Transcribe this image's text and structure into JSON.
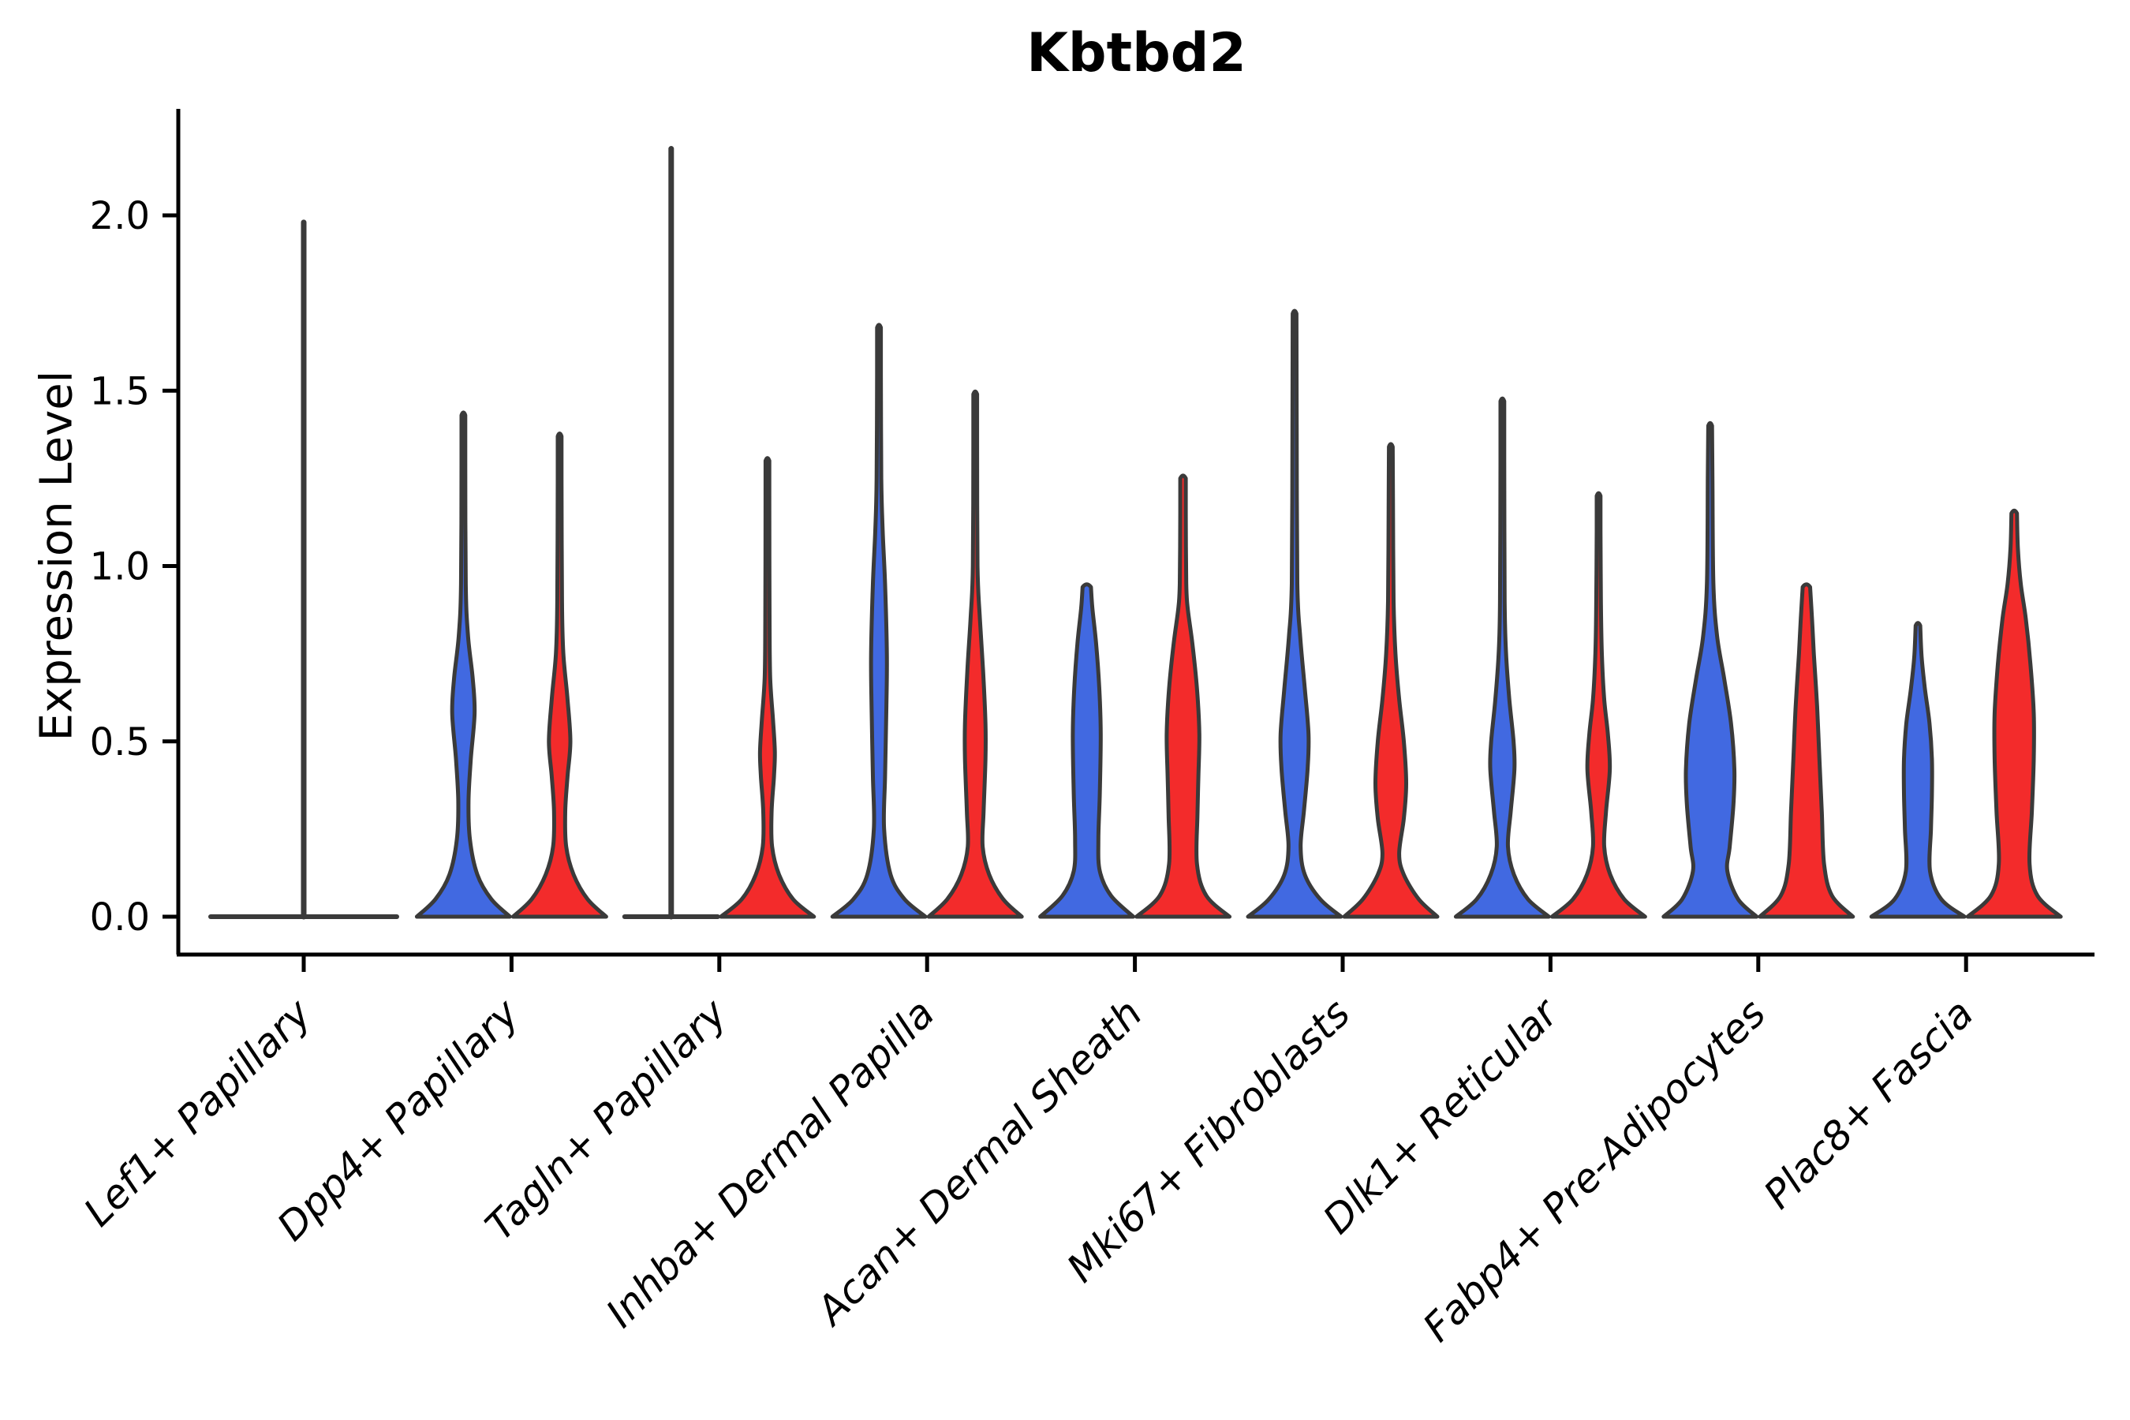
{
  "chart_data": {
    "type": "violin",
    "title": "Kbtbd2",
    "ylabel": "Expression Level",
    "xlabel": "",
    "ylim": [
      0,
      2.3
    ],
    "yticks": [
      "0.0",
      "0.5",
      "1.0",
      "1.5",
      "2.0"
    ],
    "ytick_values": [
      0.0,
      0.5,
      1.0,
      1.5,
      2.0
    ],
    "grid": false,
    "legend": "none",
    "colors": {
      "group1_fill": "#4169E1",
      "group2_fill": "#F32B2B",
      "outline": "#3A3A3A",
      "axis": "#000000"
    },
    "categories": [
      "Lef1+ Papillary",
      "Dpp4+ Papillary",
      "Tagln+ Papillary",
      "Inhba+ Dermal Papilla",
      "Acan+ Dermal Sheath",
      "Mki67+ Fibroblasts",
      "Dlk1+ Reticular",
      "Fabp4+ Pre-Adipocytes",
      "Plac8+ Fascia"
    ],
    "violins": [
      {
        "category": "Lef1+ Papillary",
        "shapes": [
          {
            "side": "center",
            "group": "none",
            "shape": "line",
            "max": 1.98,
            "flat_halfwidth": 2.0
          }
        ]
      },
      {
        "category": "Dpp4+ Papillary",
        "shapes": [
          {
            "side": "left",
            "group": "group1",
            "shape": "violin",
            "max": 1.43,
            "profile": [
              [
                0,
                1
              ],
              [
                0.05,
                0.6
              ],
              [
                0.12,
                0.3
              ],
              [
                0.22,
                0.14
              ],
              [
                0.33,
                0.11
              ],
              [
                0.45,
                0.16
              ],
              [
                0.58,
                0.24
              ],
              [
                0.68,
                0.2
              ],
              [
                0.8,
                0.1
              ],
              [
                0.95,
                0.05
              ],
              [
                1.3,
                0.04
              ],
              [
                1.43,
                0.04
              ]
            ]
          },
          {
            "side": "right",
            "group": "group2",
            "shape": "violin",
            "max": 1.37,
            "profile": [
              [
                0,
                1
              ],
              [
                0.05,
                0.6
              ],
              [
                0.12,
                0.3
              ],
              [
                0.2,
                0.14
              ],
              [
                0.3,
                0.12
              ],
              [
                0.4,
                0.17
              ],
              [
                0.5,
                0.23
              ],
              [
                0.62,
                0.17
              ],
              [
                0.75,
                0.08
              ],
              [
                0.9,
                0.05
              ],
              [
                1.25,
                0.04
              ],
              [
                1.37,
                0.04
              ]
            ]
          }
        ]
      },
      {
        "category": "Tagln+ Papillary",
        "shapes": [
          {
            "side": "left",
            "group": "group1",
            "shape": "line",
            "max": 2.19,
            "flat_halfwidth": 1.0
          },
          {
            "side": "right",
            "group": "group2",
            "shape": "violin",
            "max": 1.3,
            "profile": [
              [
                0,
                1
              ],
              [
                0.05,
                0.55
              ],
              [
                0.12,
                0.25
              ],
              [
                0.2,
                0.1
              ],
              [
                0.3,
                0.09
              ],
              [
                0.4,
                0.14
              ],
              [
                0.47,
                0.16
              ],
              [
                0.56,
                0.12
              ],
              [
                0.68,
                0.06
              ],
              [
                0.85,
                0.045
              ],
              [
                1.2,
                0.04
              ],
              [
                1.3,
                0.04
              ]
            ]
          }
        ]
      },
      {
        "category": "Inhba+ Dermal Papilla",
        "shapes": [
          {
            "side": "left",
            "group": "group1",
            "shape": "violin",
            "max": 1.68,
            "profile": [
              [
                0,
                1
              ],
              [
                0.05,
                0.55
              ],
              [
                0.12,
                0.25
              ],
              [
                0.25,
                0.11
              ],
              [
                0.4,
                0.13
              ],
              [
                0.6,
                0.16
              ],
              [
                0.75,
                0.17
              ],
              [
                0.95,
                0.13
              ],
              [
                1.1,
                0.08
              ],
              [
                1.25,
                0.05
              ],
              [
                1.55,
                0.04
              ],
              [
                1.68,
                0.04
              ]
            ]
          },
          {
            "side": "right",
            "group": "group2",
            "shape": "violin",
            "max": 1.49,
            "profile": [
              [
                0,
                1
              ],
              [
                0.05,
                0.6
              ],
              [
                0.12,
                0.3
              ],
              [
                0.2,
                0.16
              ],
              [
                0.3,
                0.18
              ],
              [
                0.45,
                0.22
              ],
              [
                0.55,
                0.22
              ],
              [
                0.7,
                0.17
              ],
              [
                0.85,
                0.1
              ],
              [
                1.0,
                0.05
              ],
              [
                1.35,
                0.04
              ],
              [
                1.49,
                0.04
              ]
            ]
          }
        ]
      },
      {
        "category": "Acan+ Dermal Sheath",
        "shapes": [
          {
            "side": "left",
            "group": "group1",
            "shape": "violin",
            "max": 0.94,
            "profile": [
              [
                0,
                1
              ],
              [
                0.06,
                0.52
              ],
              [
                0.13,
                0.28
              ],
              [
                0.22,
                0.25
              ],
              [
                0.35,
                0.28
              ],
              [
                0.52,
                0.3
              ],
              [
                0.65,
                0.27
              ],
              [
                0.78,
                0.2
              ],
              [
                0.88,
                0.12
              ],
              [
                0.94,
                0.09
              ]
            ]
          },
          {
            "side": "right",
            "group": "group2",
            "shape": "violin",
            "max": 1.25,
            "profile": [
              [
                0,
                1
              ],
              [
                0.06,
                0.5
              ],
              [
                0.15,
                0.3
              ],
              [
                0.29,
                0.31
              ],
              [
                0.4,
                0.33
              ],
              [
                0.52,
                0.35
              ],
              [
                0.65,
                0.3
              ],
              [
                0.78,
                0.2
              ],
              [
                0.88,
                0.1
              ],
              [
                0.95,
                0.07
              ],
              [
                1.15,
                0.06
              ],
              [
                1.25,
                0.06
              ]
            ]
          }
        ]
      },
      {
        "category": "Mki67+ Fibroblasts",
        "shapes": [
          {
            "side": "left",
            "group": "group1",
            "shape": "violin",
            "max": 1.72,
            "profile": [
              [
                0,
                1
              ],
              [
                0.05,
                0.55
              ],
              [
                0.12,
                0.22
              ],
              [
                0.2,
                0.13
              ],
              [
                0.3,
                0.2
              ],
              [
                0.42,
                0.28
              ],
              [
                0.52,
                0.3
              ],
              [
                0.65,
                0.22
              ],
              [
                0.8,
                0.12
              ],
              [
                0.95,
                0.06
              ],
              [
                1.4,
                0.045
              ],
              [
                1.72,
                0.04
              ]
            ]
          },
          {
            "side": "right",
            "group": "group2",
            "shape": "violin",
            "max": 1.34,
            "profile": [
              [
                0,
                1
              ],
              [
                0.05,
                0.6
              ],
              [
                0.12,
                0.28
              ],
              [
                0.18,
                0.18
              ],
              [
                0.28,
                0.28
              ],
              [
                0.38,
                0.33
              ],
              [
                0.5,
                0.28
              ],
              [
                0.62,
                0.18
              ],
              [
                0.75,
                0.1
              ],
              [
                0.9,
                0.06
              ],
              [
                1.2,
                0.045
              ],
              [
                1.34,
                0.04
              ]
            ]
          }
        ]
      },
      {
        "category": "Dlk1+ Reticular",
        "shapes": [
          {
            "side": "left",
            "group": "group1",
            "shape": "violin",
            "max": 1.47,
            "profile": [
              [
                0,
                1
              ],
              [
                0.05,
                0.55
              ],
              [
                0.12,
                0.25
              ],
              [
                0.2,
                0.12
              ],
              [
                0.3,
                0.18
              ],
              [
                0.42,
                0.26
              ],
              [
                0.5,
                0.24
              ],
              [
                0.62,
                0.15
              ],
              [
                0.75,
                0.08
              ],
              [
                0.9,
                0.05
              ],
              [
                1.3,
                0.04
              ],
              [
                1.47,
                0.04
              ]
            ]
          },
          {
            "side": "right",
            "group": "group2",
            "shape": "violin",
            "max": 1.2,
            "profile": [
              [
                0,
                1
              ],
              [
                0.05,
                0.55
              ],
              [
                0.12,
                0.25
              ],
              [
                0.2,
                0.12
              ],
              [
                0.3,
                0.16
              ],
              [
                0.42,
                0.24
              ],
              [
                0.52,
                0.2
              ],
              [
                0.62,
                0.12
              ],
              [
                0.75,
                0.07
              ],
              [
                0.9,
                0.05
              ],
              [
                1.1,
                0.04
              ],
              [
                1.2,
                0.04
              ]
            ]
          }
        ]
      },
      {
        "category": "Fabp4+ Pre-Adipocytes",
        "shapes": [
          {
            "side": "left",
            "group": "group1",
            "shape": "violin",
            "max": 1.4,
            "profile": [
              [
                0,
                1
              ],
              [
                0.05,
                0.6
              ],
              [
                0.13,
                0.37
              ],
              [
                0.2,
                0.42
              ],
              [
                0.32,
                0.5
              ],
              [
                0.42,
                0.52
              ],
              [
                0.55,
                0.45
              ],
              [
                0.68,
                0.3
              ],
              [
                0.8,
                0.15
              ],
              [
                0.95,
                0.07
              ],
              [
                1.25,
                0.05
              ],
              [
                1.4,
                0.04
              ]
            ]
          },
          {
            "side": "right",
            "group": "group2",
            "shape": "violin",
            "max": 0.94,
            "profile": [
              [
                0,
                1
              ],
              [
                0.06,
                0.55
              ],
              [
                0.15,
                0.38
              ],
              [
                0.3,
                0.33
              ],
              [
                0.45,
                0.28
              ],
              [
                0.6,
                0.23
              ],
              [
                0.75,
                0.16
              ],
              [
                0.85,
                0.12
              ],
              [
                0.94,
                0.08
              ]
            ]
          }
        ]
      },
      {
        "category": "Plac8+ Fascia",
        "shapes": [
          {
            "side": "left",
            "group": "group1",
            "shape": "violin",
            "max": 0.83,
            "profile": [
              [
                0,
                1
              ],
              [
                0.05,
                0.5
              ],
              [
                0.13,
                0.26
              ],
              [
                0.25,
                0.28
              ],
              [
                0.35,
                0.3
              ],
              [
                0.45,
                0.3
              ],
              [
                0.55,
                0.25
              ],
              [
                0.65,
                0.15
              ],
              [
                0.74,
                0.08
              ],
              [
                0.83,
                0.05
              ]
            ]
          },
          {
            "side": "right",
            "group": "group2",
            "shape": "violin",
            "max": 1.15,
            "profile": [
              [
                0,
                1
              ],
              [
                0.06,
                0.5
              ],
              [
                0.15,
                0.33
              ],
              [
                0.3,
                0.38
              ],
              [
                0.45,
                0.42
              ],
              [
                0.58,
                0.42
              ],
              [
                0.72,
                0.35
              ],
              [
                0.85,
                0.25
              ],
              [
                0.95,
                0.14
              ],
              [
                1.05,
                0.08
              ],
              [
                1.15,
                0.06
              ]
            ]
          }
        ]
      }
    ]
  }
}
